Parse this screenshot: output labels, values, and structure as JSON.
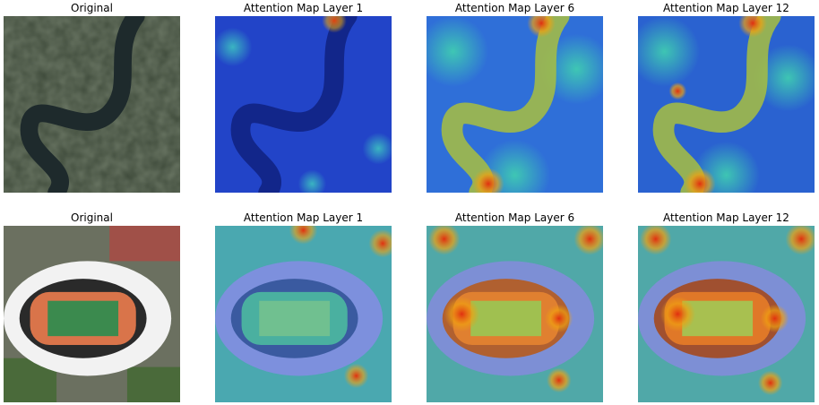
{
  "rows": [
    {
      "scene": "river",
      "titles": [
        "Original",
        "Attention Map Layer 1",
        "Attention Map Layer 6",
        "Attention Map Layer 12"
      ]
    },
    {
      "scene": "stadium",
      "titles": [
        "Original",
        "Attention Map Layer 1",
        "Attention Map Layer 6",
        "Attention Map Layer 12"
      ]
    }
  ],
  "colors": {
    "heat_low": "#1a3fd0",
    "heat_mid": "#3fc0a0",
    "heat_high": "#e04010",
    "terrain": "#3e4a3a",
    "river": "#1e2a2c",
    "track": "#d9744a",
    "field": "#3b8a4e",
    "roof": "#f2f2f2"
  }
}
